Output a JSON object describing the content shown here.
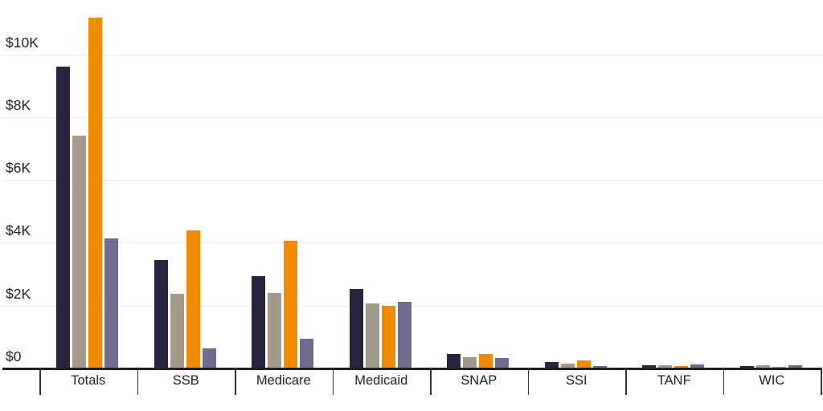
{
  "chart_data": {
    "type": "bar",
    "title": "",
    "xlabel": "",
    "ylabel": "",
    "categories": [
      "Totals",
      "SSB",
      "Medicare",
      "Medicaid",
      "SNAP",
      "SSI",
      "TANF",
      "WIC"
    ],
    "series": [
      {
        "name": "navy",
        "color": "#2a2340",
        "values": [
          9600,
          3450,
          2950,
          2520,
          470,
          210,
          110,
          70
        ]
      },
      {
        "name": "tan",
        "color": "#a49a8c",
        "values": [
          7400,
          2380,
          2400,
          2060,
          370,
          150,
          95,
          90
        ]
      },
      {
        "name": "orange",
        "color": "#ee8b00",
        "values": [
          11150,
          4400,
          4050,
          1980,
          450,
          260,
          70,
          50
        ]
      },
      {
        "name": "slate",
        "color": "#706b8f",
        "values": [
          4150,
          650,
          950,
          2120,
          340,
          80,
          125,
          110
        ]
      }
    ],
    "y_ticks": [
      {
        "label": "$0",
        "value": 0
      },
      {
        "label": "$2K",
        "value": 2000
      },
      {
        "label": "$4K",
        "value": 4000
      },
      {
        "label": "$6K",
        "value": 6000
      },
      {
        "label": "$8K",
        "value": 8000
      },
      {
        "label": "$10K",
        "value": 10000
      }
    ],
    "ylim": [
      0,
      11750
    ],
    "grid": "horizontal",
    "legend_position": "none"
  },
  "colors": {
    "background": "#ffffff",
    "axis": "#231f20",
    "tick": "#333333",
    "gridline": "#ececec",
    "text": "#221f1f"
  }
}
